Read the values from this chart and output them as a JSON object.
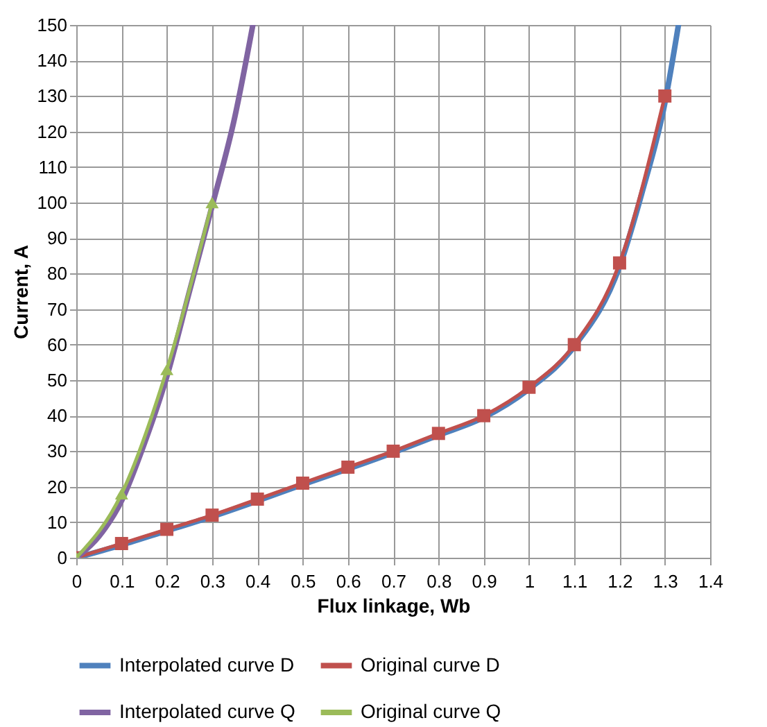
{
  "chart_data": {
    "type": "line",
    "xlabel": "Flux linkage, Wb",
    "ylabel": "Current, A",
    "xlim": [
      0,
      1.4
    ],
    "xticks": [
      0,
      0.1,
      0.2,
      0.3,
      0.4,
      0.5,
      0.6,
      0.7,
      0.8,
      0.9,
      1,
      1.1,
      1.2,
      1.3,
      1.4
    ],
    "ylim": [
      0,
      150
    ],
    "yticks": [
      0,
      10,
      20,
      30,
      40,
      50,
      60,
      70,
      80,
      90,
      100,
      110,
      120,
      130,
      140,
      150
    ],
    "grid": true,
    "legend": "bottom",
    "line_style": "solid",
    "series": [
      {
        "name": "Interpolated curve D",
        "color": "#4f81bd",
        "marker": "none",
        "x": [
          0,
          0.1,
          0.2,
          0.3,
          0.4,
          0.5,
          0.6,
          0.7,
          0.8,
          0.9,
          1,
          1.1,
          1.2,
          1.25,
          1.3,
          1.33
        ],
        "values": [
          0,
          3.6,
          7.6,
          11.6,
          16,
          20.6,
          25,
          29.6,
          34.5,
          39.5,
          47.5,
          59.5,
          82,
          103,
          128,
          150
        ]
      },
      {
        "name": "Original curve D",
        "color": "#c0504d",
        "marker": "square",
        "x": [
          0,
          0.1,
          0.2,
          0.3,
          0.4,
          0.5,
          0.6,
          0.7,
          0.8,
          0.9,
          1,
          1.1,
          1.2,
          1.3
        ],
        "values": [
          0,
          4,
          8,
          12,
          16.5,
          21,
          25.5,
          30,
          35,
          40,
          48,
          60,
          83,
          130
        ]
      },
      {
        "name": "Interpolated curve Q",
        "color": "#8064a2",
        "marker": "none",
        "x": [
          0,
          0.05,
          0.1,
          0.15,
          0.2,
          0.25,
          0.3,
          0.35,
          0.39
        ],
        "values": [
          0,
          6,
          16,
          32,
          51,
          75,
          99,
          124,
          150
        ]
      },
      {
        "name": "Original curve Q",
        "color": "#9bbb59",
        "marker": "triangle",
        "x": [
          0,
          0.1,
          0.2,
          0.3
        ],
        "values": [
          0,
          18,
          53,
          100
        ]
      }
    ]
  }
}
